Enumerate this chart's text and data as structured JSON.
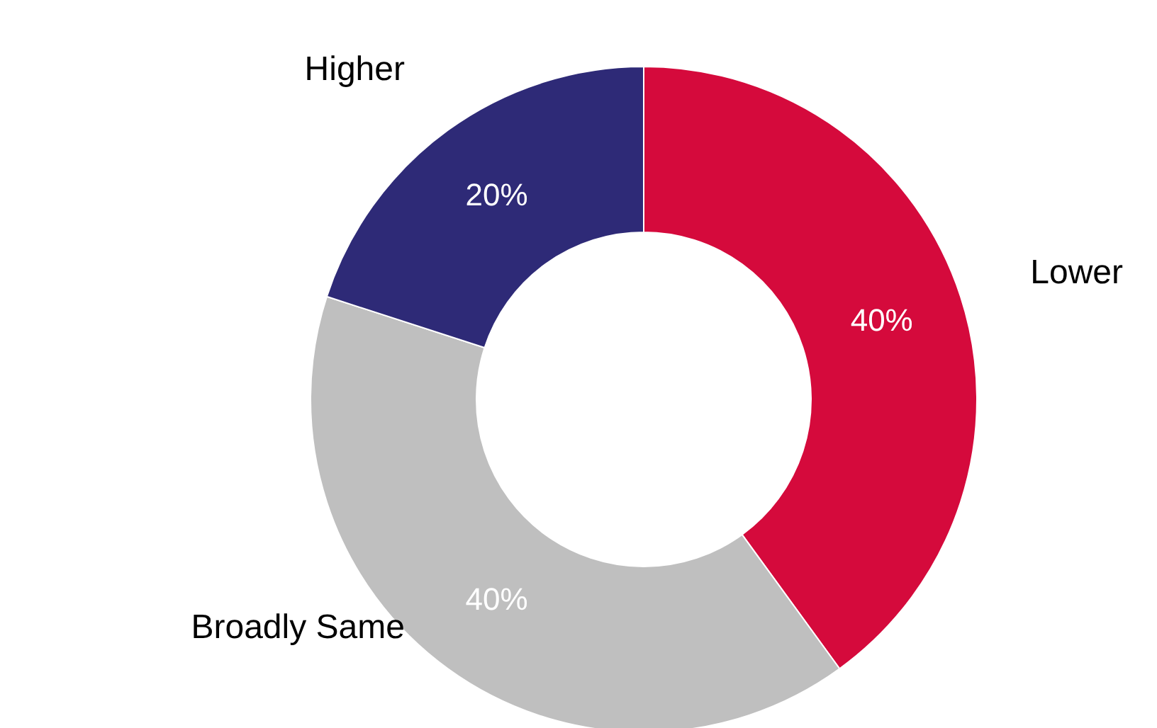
{
  "chart_data": {
    "type": "donut",
    "categories": [
      "Lower",
      "Broadly Same",
      "Higher"
    ],
    "values": [
      40,
      40,
      20
    ],
    "colors": [
      "#d50a3c",
      "#bfbfbf",
      "#2e2a77"
    ],
    "value_labels": [
      "40%",
      "40%",
      "20%"
    ]
  }
}
